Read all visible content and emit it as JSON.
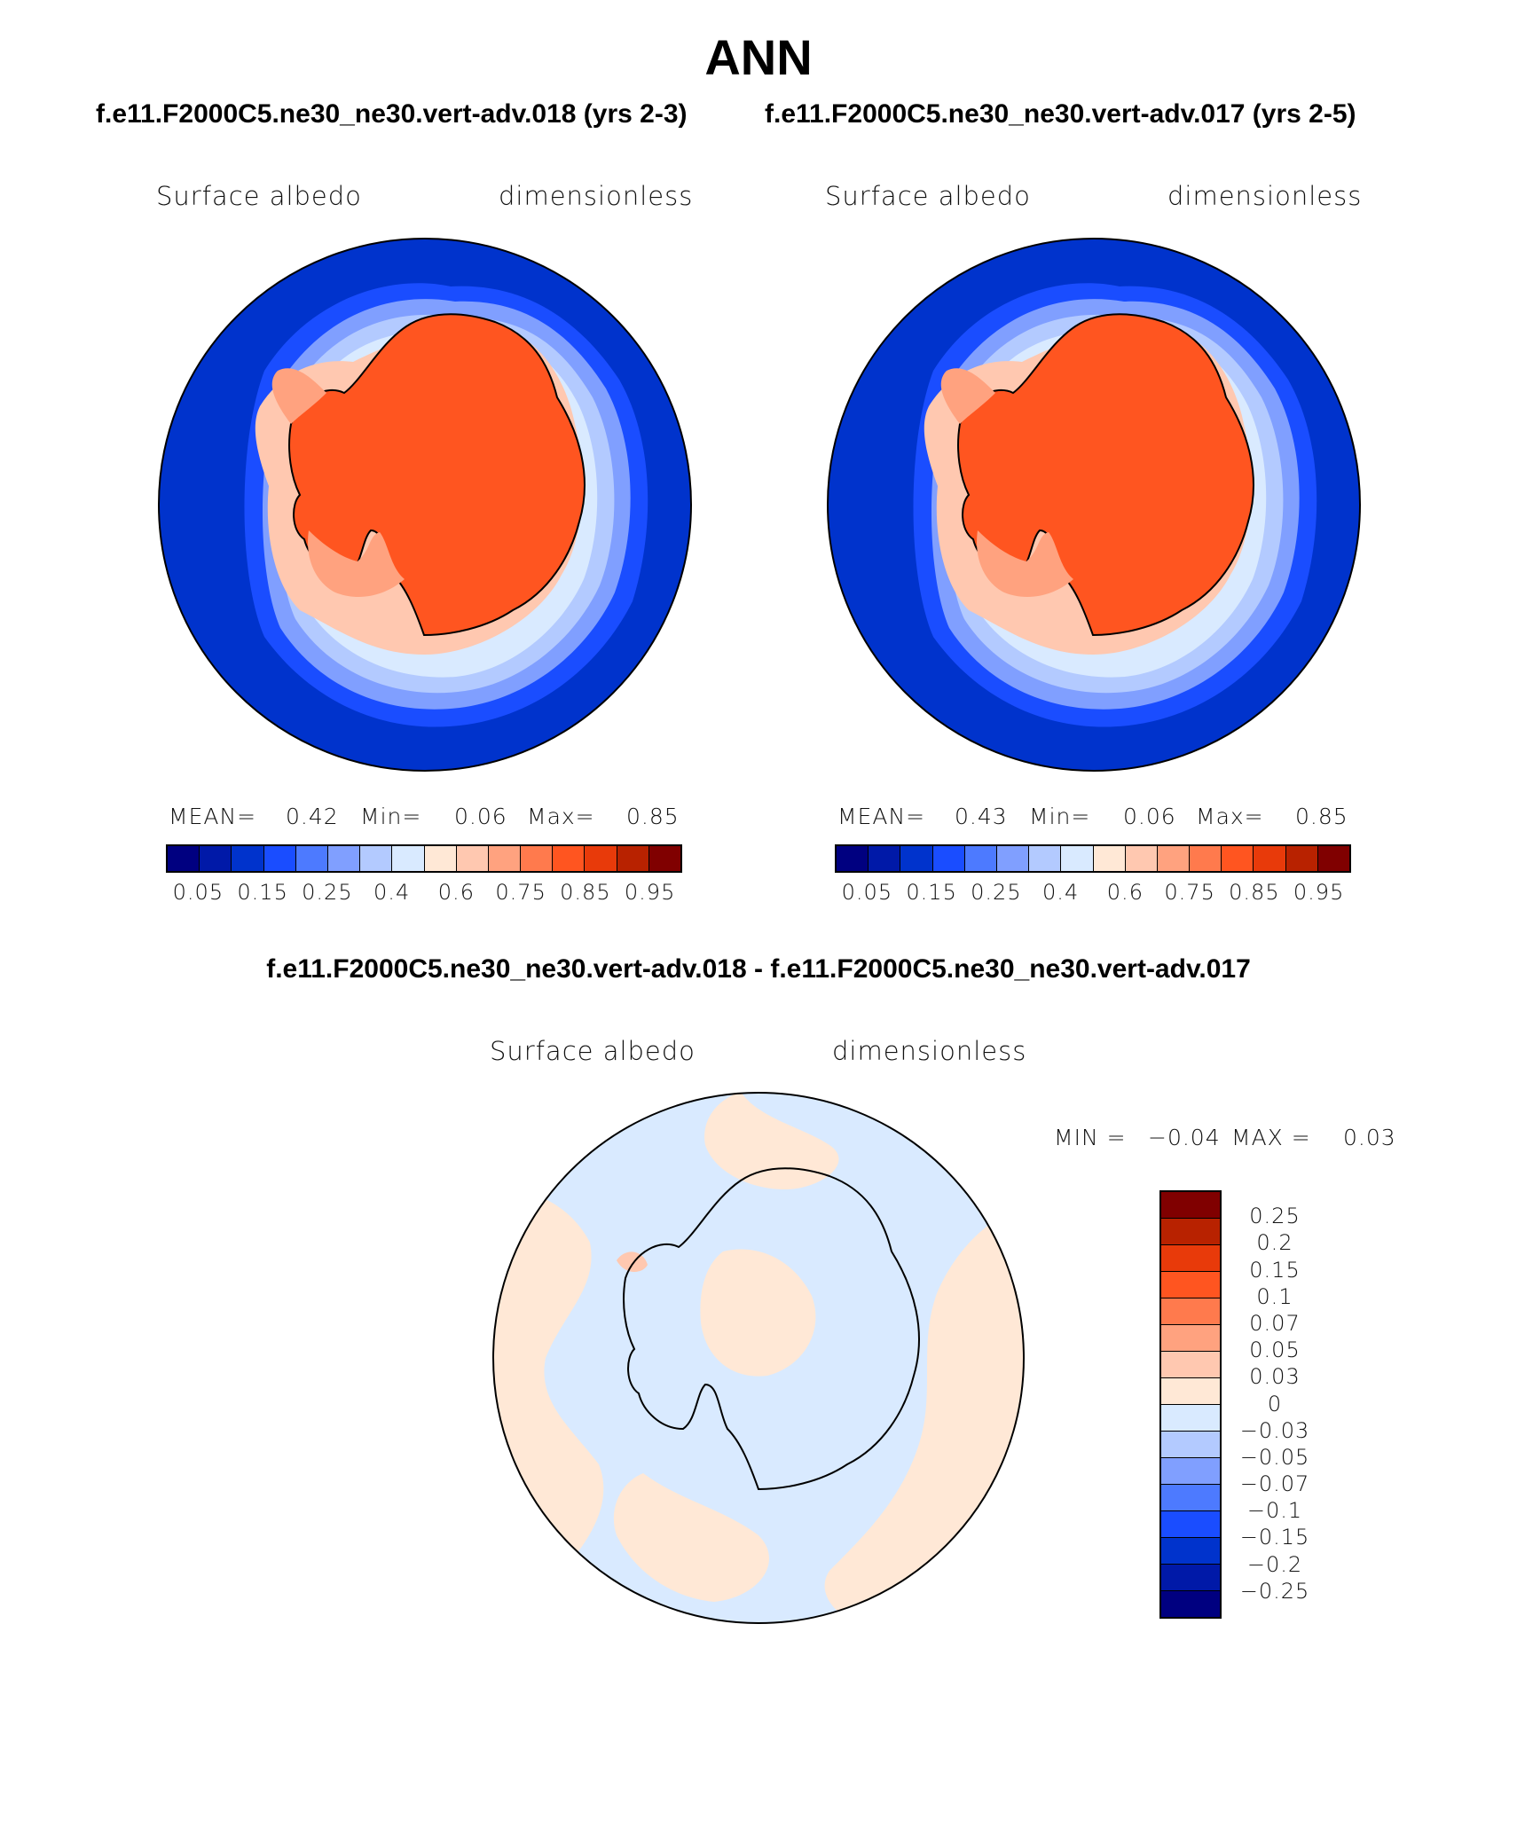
{
  "title": "ANN",
  "subtitle_left": "f.e11.F2000C5.ne30_ne30.vert-adv.018 (yrs 2-3)",
  "subtitle_right": "f.e11.F2000C5.ne30_ne30.vert-adv.017 (yrs 2-5)",
  "diff_title": "f.e11.F2000C5.ne30_ne30.vert-adv.018 - f.e11.F2000C5.ne30_ne30.vert-adv.017",
  "panels": [
    {
      "variable": "Surface albedo",
      "units": "dimensionless",
      "mean_label": "MEAN=",
      "mean": "0.42",
      "min_label": "Min=",
      "min": "0.06",
      "max_label": "Max=",
      "max": "0.85"
    },
    {
      "variable": "Surface albedo",
      "units": "dimensionless",
      "mean_label": "MEAN=",
      "mean": "0.43",
      "min_label": "Min=",
      "min": "0.06",
      "max_label": "Max=",
      "max": "0.85"
    }
  ],
  "diff_panel": {
    "variable": "Surface albedo",
    "units": "dimensionless",
    "min_label": "MIN =",
    "min": "−0.04",
    "max_label": "MAX =",
    "max": "0.03"
  },
  "colorbar_top": {
    "ticks": [
      "0.05",
      "0.15",
      "0.25",
      "0.4",
      "0.6",
      "0.75",
      "0.85",
      "0.95"
    ],
    "colors": [
      "#000080",
      "#0019a8",
      "#0033cc",
      "#1a4dff",
      "#4d7aff",
      "#809fff",
      "#b3caff",
      "#d9eaff",
      "#ffe8d6",
      "#ffc8b0",
      "#ffa27f",
      "#ff7a4d",
      "#ff5520",
      "#e83a0a",
      "#b82200",
      "#800000"
    ]
  },
  "colorbar_diff": {
    "ticks": [
      "0.25",
      "0.2",
      "0.15",
      "0.1",
      "0.07",
      "0.05",
      "0.03",
      "0",
      "−0.03",
      "−0.05",
      "−0.07",
      "−0.1",
      "−0.15",
      "−0.2",
      "−0.25"
    ],
    "colors": [
      "#800000",
      "#b82200",
      "#e83a0a",
      "#ff5520",
      "#ff7a4d",
      "#ffa27f",
      "#ffc8b0",
      "#ffe8d6",
      "#d9eaff",
      "#b3caff",
      "#809fff",
      "#4d7aff",
      "#1a4dff",
      "#0033cc",
      "#0019a8",
      "#000080"
    ]
  },
  "colors": {
    "ocean_deep": "#0033cc",
    "ocean_mid": "#1a4dff",
    "ice_light": "#d9eaff",
    "ice_mid": "#b3caff",
    "land_orange": "#ff5520",
    "land_salmon": "#ffa27f",
    "diff_blue": "#d9eaff",
    "diff_peach": "#ffe8d6"
  }
}
